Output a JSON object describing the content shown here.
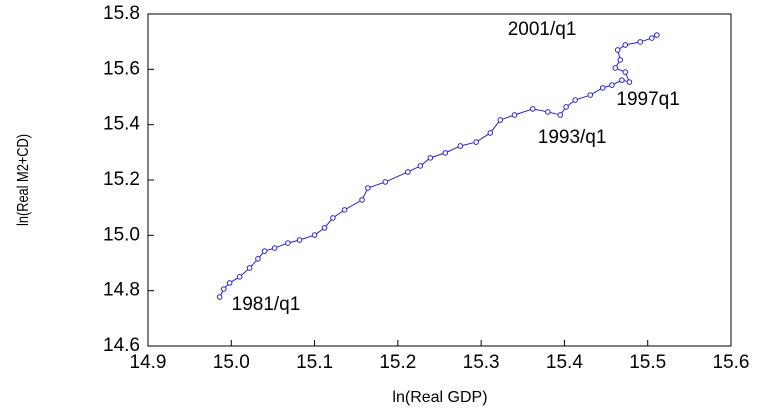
{
  "chart_data": {
    "type": "line",
    "x_label": "ln(Real GDP)",
    "y_label": "ln(Real M2+CD)",
    "color": "#2323d6",
    "markers": true,
    "x": [
      14.986,
      14.991,
      14.998,
      15.01,
      15.022,
      15.032,
      15.04,
      15.052,
      15.068,
      15.082,
      15.1,
      15.112,
      15.122,
      15.136,
      15.157,
      15.164,
      15.185,
      15.212,
      15.227,
      15.239,
      15.257,
      15.275,
      15.294,
      15.311,
      15.323,
      15.34,
      15.362,
      15.38,
      15.395,
      15.402,
      15.413,
      15.431,
      15.446,
      15.457,
      15.469,
      15.478,
      15.473,
      15.461,
      15.467,
      15.464,
      15.473,
      15.491,
      15.505,
      15.511
    ],
    "values": [
      14.777,
      14.806,
      14.828,
      14.85,
      14.882,
      14.915,
      14.943,
      14.954,
      14.972,
      14.983,
      15.001,
      15.027,
      15.063,
      15.092,
      15.128,
      15.171,
      15.193,
      15.229,
      15.251,
      15.28,
      15.298,
      15.323,
      15.337,
      15.37,
      15.417,
      15.435,
      15.457,
      15.446,
      15.435,
      15.464,
      15.489,
      15.507,
      15.533,
      15.543,
      15.561,
      15.554,
      15.59,
      15.605,
      15.634,
      15.67,
      15.688,
      15.699,
      15.713,
      15.724
    ],
    "annotations": [
      {
        "text": "2001/q1",
        "x": 15.464,
        "y": 15.67
      },
      {
        "text": "1997q1",
        "x": 15.478,
        "y": 15.554
      },
      {
        "text": "1993/q1",
        "x": 15.38,
        "y": 15.446
      },
      {
        "text": "1981/q1",
        "x": 14.986,
        "y": 14.777
      }
    ],
    "xlim": [
      14.9,
      15.6
    ],
    "xticks": [
      14.9,
      {
        "value": 15.0,
        "label": "15.0"
      },
      15.1,
      15.2,
      15.3,
      15.4,
      15.5,
      15.6
    ],
    "ylim": [
      14.6,
      15.8
    ],
    "yticks": [
      14.6,
      14.8,
      {
        "value": 15.0,
        "label": "15.0"
      },
      15.2,
      15.4,
      15.6,
      15.8
    ]
  }
}
